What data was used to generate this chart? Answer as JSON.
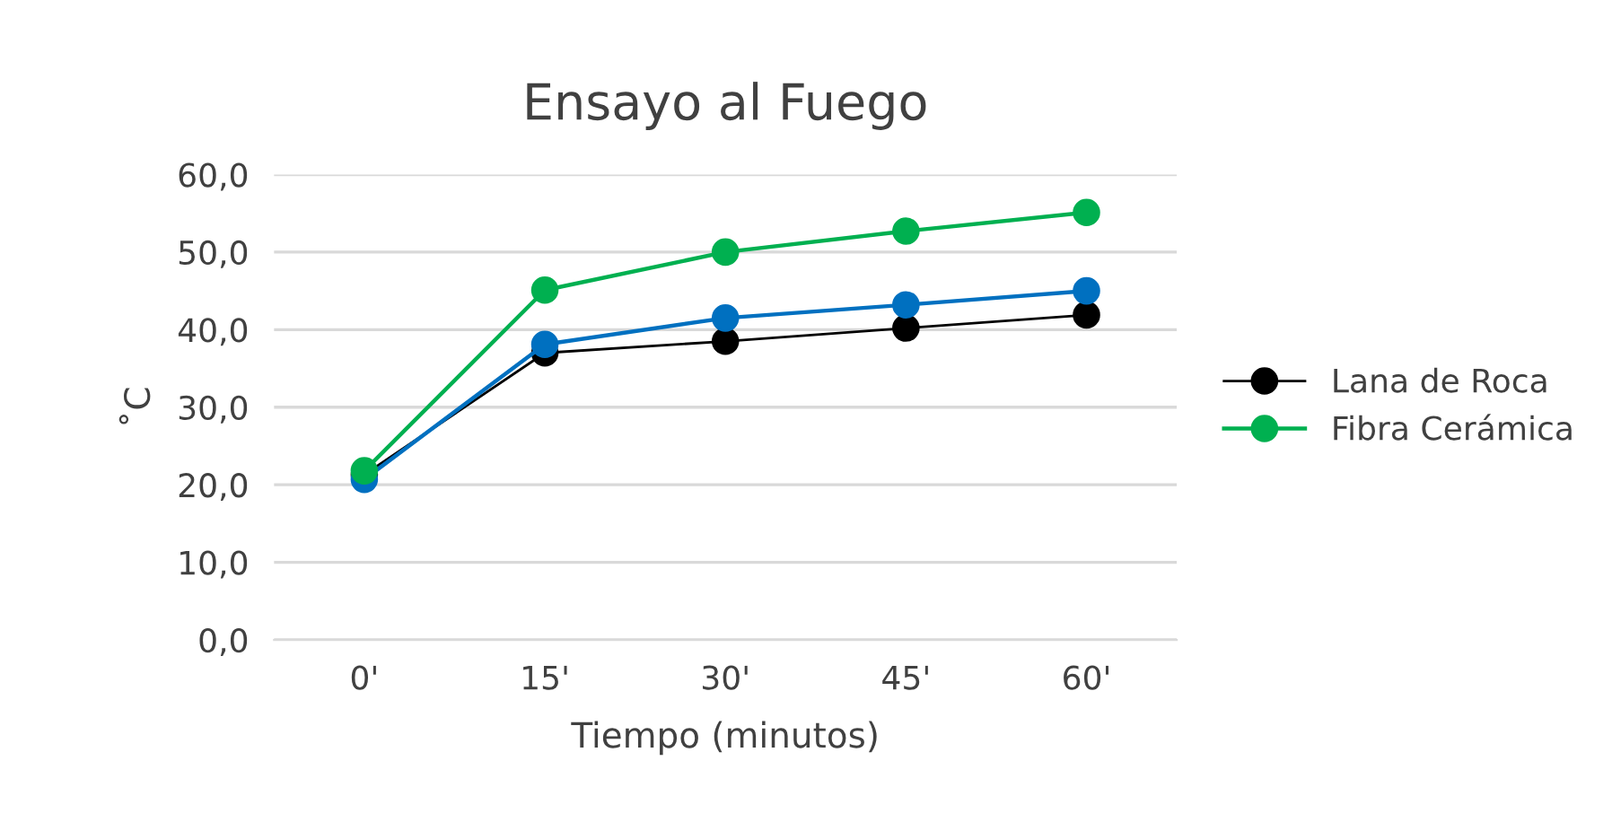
{
  "chart_data": {
    "type": "line",
    "title": "Ensayo al Fuego",
    "xlabel": "Tiempo (minutos)",
    "ylabel": "˚C",
    "categories": [
      "0'",
      "15'",
      "30'",
      "45'",
      "60'"
    ],
    "series": [
      {
        "name": "Lana de Roca",
        "color": "#000000",
        "values": [
          21.3,
          37.0,
          38.5,
          40.2,
          41.9
        ]
      },
      {
        "color": "#0070c0",
        "values": [
          20.7,
          38.1,
          41.5,
          43.2,
          45.0
        ]
      },
      {
        "name": "Fibra Cerámica",
        "color": "#00b050",
        "values": [
          21.8,
          45.1,
          50.0,
          52.7,
          55.1
        ]
      }
    ],
    "ylim": [
      0,
      60
    ],
    "yticks": [
      {
        "value": 0,
        "label": "0,0"
      },
      {
        "value": 10,
        "label": "10,0"
      },
      {
        "value": 20,
        "label": "20,0"
      },
      {
        "value": 30,
        "label": "30,0"
      },
      {
        "value": 40,
        "label": "40,0"
      },
      {
        "value": 50,
        "label": "50,0"
      },
      {
        "value": 60,
        "label": "60,0"
      }
    ],
    "grid": "y",
    "legend": "right",
    "marker": "circle",
    "line_style": "solid"
  }
}
